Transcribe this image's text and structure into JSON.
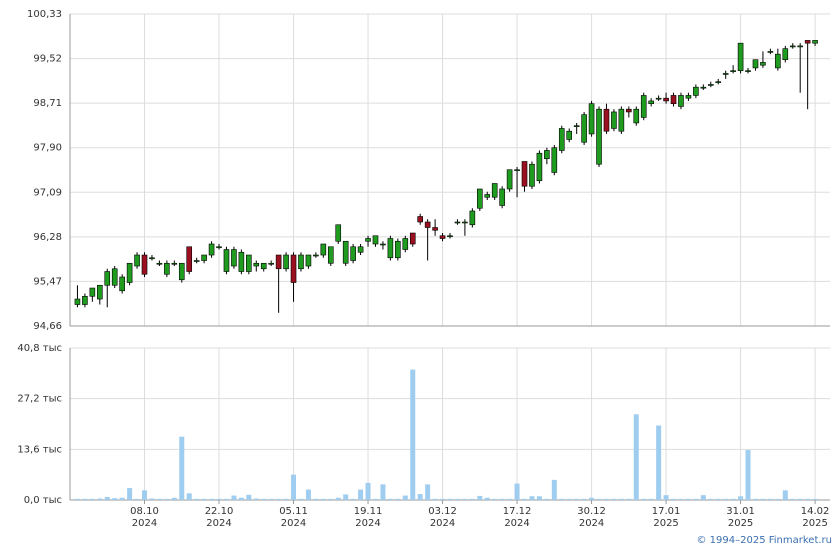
{
  "chart_data": [
    {
      "type": "candlestick",
      "ylim": [
        94.66,
        100.33
      ],
      "yticks": [
        {
          "value": 94.66,
          "label": "94,66"
        },
        {
          "value": 95.47,
          "label": "95,47"
        },
        {
          "value": 96.28,
          "label": "96,28"
        },
        {
          "value": 97.09,
          "label": "97,09"
        },
        {
          "value": 97.9,
          "label": "97,90"
        },
        {
          "value": 98.71,
          "label": "98,71"
        },
        {
          "value": 99.52,
          "label": "99,52"
        },
        {
          "value": 100.33,
          "label": "100,33"
        }
      ],
      "grid": true,
      "up_color": "#1f9b1f",
      "down_color": "#9b1020",
      "open": [
        95.05,
        95.05,
        95.2,
        95.15,
        95.4,
        95.4,
        95.3,
        95.45,
        95.75,
        95.95,
        95.9,
        95.8,
        95.6,
        95.8,
        95.5,
        96.1,
        95.85,
        95.85,
        95.95,
        96.1,
        95.65,
        95.75,
        95.65,
        95.65,
        95.75,
        95.7,
        95.8,
        95.95,
        95.7,
        95.95,
        95.7,
        95.75,
        95.95,
        95.95,
        95.8,
        96.2,
        95.8,
        95.85,
        96.0,
        96.2,
        96.15,
        96.15,
        95.9,
        95.9,
        96.05,
        96.35,
        96.65,
        96.55,
        96.45,
        96.3,
        96.3,
        96.55,
        96.55,
        96.5,
        96.8,
        97.0,
        97.0,
        96.85,
        97.15,
        97.5,
        97.65,
        97.2,
        97.3,
        97.7,
        97.45,
        97.85,
        98.05,
        98.3,
        98.0,
        98.15,
        97.6,
        98.6,
        98.25,
        98.2,
        98.6,
        98.35,
        98.45,
        98.7,
        98.8,
        98.8,
        98.85,
        98.65,
        98.8,
        98.85,
        99.0,
        99.05,
        99.1,
        99.25,
        99.3,
        99.3,
        99.3,
        99.35,
        99.4,
        99.65,
        99.35,
        99.5,
        99.75,
        99.75,
        99.85,
        99.8
      ],
      "high": [
        95.4,
        95.25,
        95.35,
        95.4,
        95.7,
        95.75,
        95.6,
        95.8,
        96.0,
        96.0,
        95.95,
        95.85,
        95.85,
        95.85,
        95.8,
        96.1,
        95.9,
        95.95,
        96.2,
        96.15,
        96.1,
        96.1,
        96.05,
        95.95,
        95.85,
        95.8,
        95.85,
        95.95,
        96.0,
        96.0,
        96.0,
        95.95,
        96.0,
        96.15,
        96.1,
        96.5,
        96.2,
        96.15,
        96.15,
        96.3,
        96.3,
        96.2,
        96.3,
        96.25,
        96.3,
        96.35,
        96.7,
        96.6,
        96.6,
        96.35,
        96.35,
        96.6,
        96.6,
        96.8,
        97.15,
        97.1,
        97.25,
        97.2,
        97.5,
        97.55,
        97.65,
        97.65,
        97.85,
        97.9,
        97.95,
        98.3,
        98.25,
        98.35,
        98.55,
        98.75,
        98.65,
        98.7,
        98.6,
        98.65,
        98.65,
        98.65,
        98.9,
        98.8,
        98.85,
        98.9,
        98.9,
        98.9,
        98.9,
        99.05,
        99.05,
        99.1,
        99.15,
        99.3,
        99.4,
        99.8,
        99.35,
        99.5,
        99.65,
        99.7,
        99.7,
        99.75,
        99.8,
        99.8,
        99.85,
        99.85
      ],
      "low": [
        95.0,
        95.0,
        95.1,
        95.05,
        95.0,
        95.35,
        95.25,
        95.4,
        95.7,
        95.55,
        95.85,
        95.75,
        95.55,
        95.75,
        95.45,
        95.6,
        95.8,
        95.8,
        95.9,
        96.05,
        95.6,
        95.7,
        95.6,
        95.6,
        95.65,
        95.65,
        95.75,
        94.9,
        95.65,
        95.1,
        95.65,
        95.7,
        95.9,
        95.9,
        95.75,
        96.15,
        95.75,
        95.8,
        95.95,
        96.1,
        96.1,
        96.05,
        95.85,
        95.85,
        96.0,
        96.1,
        96.5,
        95.85,
        96.3,
        96.2,
        96.25,
        96.5,
        96.3,
        96.45,
        96.75,
        96.95,
        96.95,
        96.8,
        97.1,
        97.0,
        97.1,
        97.15,
        97.25,
        97.6,
        97.4,
        97.8,
        98.0,
        98.15,
        97.95,
        98.1,
        97.55,
        98.15,
        98.2,
        98.15,
        98.45,
        98.3,
        98.4,
        98.65,
        98.75,
        98.7,
        98.65,
        98.6,
        98.75,
        98.8,
        98.95,
        99.0,
        99.05,
        99.15,
        99.25,
        99.25,
        99.25,
        99.3,
        99.35,
        99.6,
        99.3,
        99.45,
        99.7,
        98.9,
        98.6,
        99.75
      ],
      "close": [
        95.15,
        95.2,
        95.35,
        95.4,
        95.65,
        95.7,
        95.55,
        95.8,
        95.95,
        95.6,
        95.9,
        95.8,
        95.8,
        95.8,
        95.8,
        95.65,
        95.85,
        95.95,
        96.15,
        96.1,
        96.05,
        96.05,
        96.0,
        95.95,
        95.8,
        95.8,
        95.8,
        95.7,
        95.95,
        95.45,
        95.95,
        95.95,
        95.95,
        96.15,
        96.1,
        96.5,
        96.2,
        96.1,
        96.1,
        96.25,
        96.3,
        96.15,
        96.25,
        96.2,
        96.25,
        96.15,
        96.55,
        96.45,
        96.4,
        96.25,
        96.3,
        96.55,
        96.55,
        96.75,
        97.15,
        97.05,
        97.25,
        97.15,
        97.5,
        97.5,
        97.2,
        97.6,
        97.8,
        97.85,
        97.9,
        98.25,
        98.2,
        98.3,
        98.5,
        98.7,
        98.6,
        98.2,
        98.55,
        98.6,
        98.55,
        98.6,
        98.85,
        98.75,
        98.8,
        98.75,
        98.7,
        98.85,
        98.85,
        99.0,
        99.0,
        99.05,
        99.1,
        99.25,
        99.3,
        99.8,
        99.3,
        99.5,
        99.45,
        99.65,
        99.6,
        99.7,
        99.75,
        99.75,
        99.8,
        99.85
      ]
    },
    {
      "type": "bar",
      "color": "#9fcdf0",
      "ylim": [
        0,
        40.8
      ],
      "yticks": [
        {
          "value": 0,
          "label": "0,0 тыс"
        },
        {
          "value": 13.6,
          "label": "13,6 тыс"
        },
        {
          "value": 27.2,
          "label": "27,2 тыс"
        },
        {
          "value": 40.8,
          "label": "40,8 тыс"
        }
      ],
      "grid": true,
      "categories": [
        null,
        null,
        null,
        null,
        null,
        null,
        null,
        null,
        null,
        "08.10\n2024",
        null,
        null,
        null,
        null,
        null,
        null,
        null,
        null,
        null,
        "22.10\n2024",
        null,
        null,
        null,
        null,
        null,
        null,
        null,
        null,
        null,
        "05.11\n2024",
        null,
        null,
        null,
        null,
        null,
        null,
        null,
        null,
        null,
        "19.11\n2024",
        null,
        null,
        null,
        null,
        null,
        null,
        null,
        null,
        null,
        "03.12\n2024",
        null,
        null,
        null,
        null,
        null,
        null,
        null,
        null,
        null,
        "17.12\n2024",
        null,
        null,
        null,
        null,
        null,
        null,
        null,
        null,
        null,
        "30.12\n2024",
        null,
        null,
        null,
        null,
        null,
        null,
        null,
        null,
        null,
        "17.01\n2025",
        null,
        null,
        null,
        null,
        null,
        null,
        null,
        null,
        null,
        "31.01\n2025",
        null,
        null,
        null,
        null,
        null,
        null,
        null,
        null,
        null,
        "14.02\n2025"
      ],
      "values": [
        0.3,
        0.3,
        0.3,
        0.4,
        0.8,
        0.5,
        0.6,
        3.2,
        0.3,
        2.6,
        0.4,
        0.3,
        0.3,
        0.6,
        17.0,
        1.8,
        0.3,
        0.3,
        0.3,
        0.3,
        0.3,
        1.2,
        0.6,
        1.4,
        0.4,
        0.3,
        0.3,
        0.3,
        0.3,
        6.8,
        0.3,
        2.8,
        0.3,
        0.3,
        0.3,
        0.6,
        1.5,
        0.3,
        2.8,
        4.6,
        0.3,
        4.2,
        0.3,
        0.3,
        1.2,
        35.0,
        1.6,
        4.2,
        0.3,
        0.3,
        0.3,
        0.3,
        0.3,
        0.3,
        1.1,
        0.6,
        0.3,
        0.3,
        0.3,
        4.4,
        0.3,
        1.0,
        1.0,
        0.3,
        5.4,
        0.3,
        0.3,
        0.3,
        0.3,
        0.6,
        0.3,
        0.3,
        0.3,
        0.3,
        0.3,
        23.0,
        0.3,
        0.3,
        20.0,
        1.3,
        0.3,
        0.3,
        0.3,
        0.3,
        1.3,
        0.3,
        0.3,
        0.3,
        0.3,
        1.0,
        13.4,
        0.3,
        0.3,
        0.3,
        0.3,
        2.6,
        0.3,
        0.3,
        0.3,
        0.3
      ]
    }
  ],
  "footer": {
    "copyright": "© 1994–2025 Finmarket.ru"
  }
}
